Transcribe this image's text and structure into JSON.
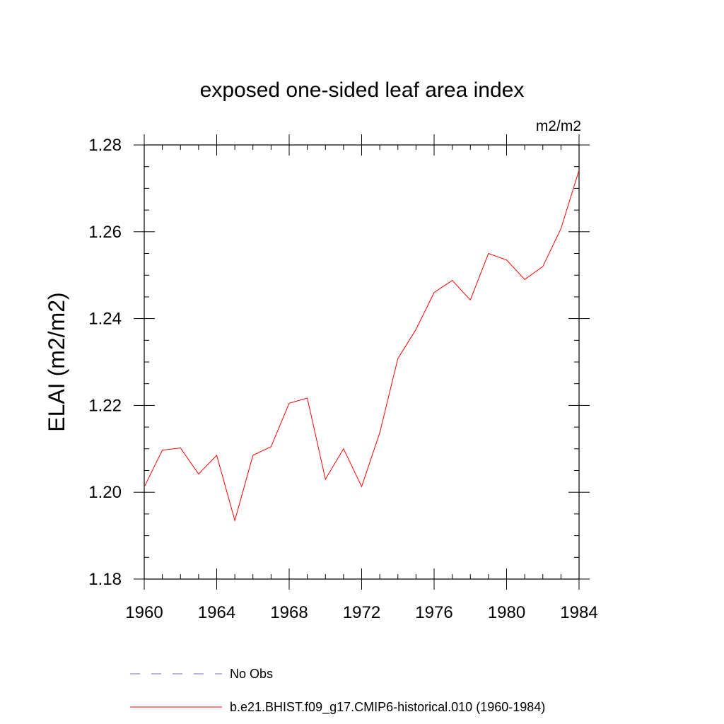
{
  "chart_data": {
    "type": "line",
    "title": "exposed one-sided leaf area index",
    "units_label": "m2/m2",
    "ylabel": "ELAI  (m2/m2)",
    "xlabel": "",
    "xlim": [
      1960,
      1984
    ],
    "ylim": [
      1.18,
      1.28
    ],
    "x_ticks": [
      1960,
      1964,
      1968,
      1972,
      1976,
      1980,
      1984
    ],
    "x_tick_labels": [
      "1960",
      "1964",
      "1968",
      "1972",
      "1976",
      "1980",
      "1984"
    ],
    "y_ticks": [
      1.18,
      1.2,
      1.22,
      1.24,
      1.26,
      1.28
    ],
    "y_tick_labels": [
      "1.18",
      "1.20",
      "1.22",
      "1.24",
      "1.26",
      "1.28"
    ],
    "grid": false,
    "legend_position": "bottom",
    "series": [
      {
        "name": "No Obs",
        "color": "#6a6ac8",
        "style": "dashed",
        "x": [],
        "values": []
      },
      {
        "name": "b.e21.BHIST.f09_g17.CMIP6-historical.010 (1960-1984)",
        "color": "#ff0000",
        "style": "solid",
        "x": [
          1960,
          1961,
          1962,
          1963,
          1964,
          1965,
          1966,
          1967,
          1968,
          1969,
          1970,
          1971,
          1972,
          1973,
          1974,
          1975,
          1976,
          1977,
          1978,
          1979,
          1980,
          1981,
          1982,
          1983,
          1984
        ],
        "values": [
          1.2012,
          1.2097,
          1.2102,
          1.2042,
          1.2085,
          1.1935,
          1.2085,
          1.2105,
          1.2205,
          1.2217,
          1.203,
          1.21,
          1.2013,
          1.2137,
          1.2308,
          1.2375,
          1.246,
          1.2488,
          1.2443,
          1.255,
          1.2535,
          1.249,
          1.252,
          1.2607,
          1.2742
        ]
      }
    ]
  }
}
